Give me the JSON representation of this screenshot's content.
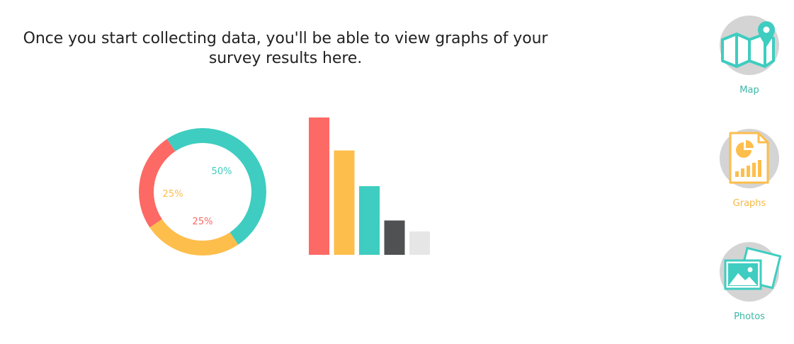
{
  "empty_state": {
    "message_line1": "Once you start collecting data, you'll be able to view graphs of your",
    "message_line2": "survey results here."
  },
  "chart_data": [
    {
      "type": "pie",
      "categories": [
        "",
        "",
        ""
      ],
      "values": [
        50,
        25,
        25
      ],
      "labels": [
        "50%",
        "25%",
        "25%"
      ],
      "colors": [
        "#3ecdc0",
        "#fdbe4c",
        "#fd6964"
      ]
    },
    {
      "type": "bar",
      "categories": [
        "",
        "",
        "",
        "",
        ""
      ],
      "values": [
        100,
        76,
        50,
        25,
        17
      ],
      "colors": [
        "#fd6964",
        "#fdbe4c",
        "#3ecdc0",
        "#4f5152",
        "#e6e6e6"
      ]
    }
  ],
  "side_nav": {
    "items": [
      {
        "label": "Map",
        "icon": "map-pin-icon",
        "color": "#3ab8a6"
      },
      {
        "label": "Graphs",
        "icon": "graph-report-icon",
        "color": "#f7b844"
      },
      {
        "label": "Photos",
        "icon": "photos-icon",
        "color": "#3ab8a6"
      }
    ]
  }
}
